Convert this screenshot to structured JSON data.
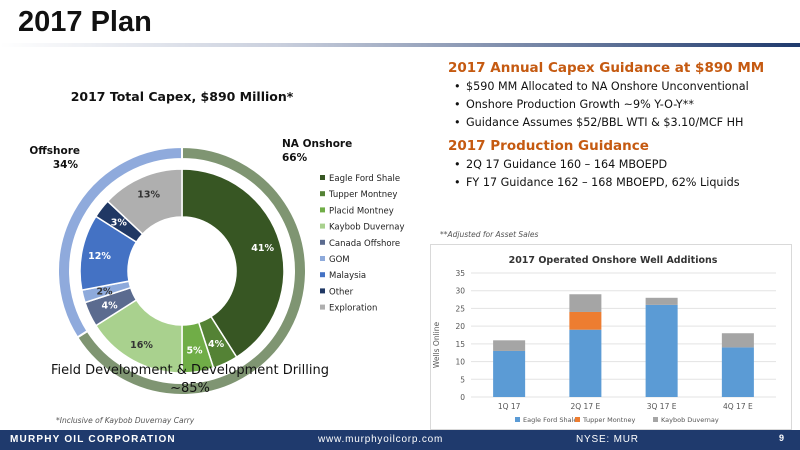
{
  "slide_title": "2017 Plan",
  "guidance": {
    "capex_heading": "2017 Annual Capex Guidance at $890 MM",
    "capex_bullets": [
      "$590 MM Allocated to NA Onshore Unconventional",
      "Onshore Production Growth ~9% Y-O-Y**",
      "Guidance Assumes $52/BBL WTI & $3.10/MCF HH"
    ],
    "production_heading": "2017 Production Guidance",
    "production_bullets": [
      "2Q 17 Guidance 160 – 164 MBOEPD",
      "FY 17 Guidance 162 – 168 MBOEPD, 62% Liquids"
    ],
    "adjusted_note": "**Adjusted for Asset Sales"
  },
  "footnote": "*Inclusive of Kaybob Duvernay Carry",
  "footer": {
    "company": "MURPHY OIL CORPORATION",
    "url": "www.murphyoilcorp.com",
    "ticker": "NYSE: MUR",
    "page": "9"
  },
  "chart_data": [
    {
      "type": "pie",
      "variant": "double-donut",
      "title": "2017 Total Capex, $890 Million*",
      "caption_line1": "Field Development & Development Drilling",
      "caption_line2": "~85%",
      "inner_ring": [
        {
          "label": "Eagle Ford Shale",
          "value": 41,
          "color": "#375623"
        },
        {
          "label": "Tupper Montney",
          "value": 4,
          "color": "#548235"
        },
        {
          "label": "Placid Montney",
          "value": 5,
          "color": "#70ad47"
        },
        {
          "label": "Kaybob Duvernay",
          "value": 16,
          "color": "#a9d18e"
        },
        {
          "label": "Canada Offshore",
          "value": 4,
          "color": "#5b6b8f"
        },
        {
          "label": "GOM",
          "value": 2,
          "color": "#8eaadb"
        },
        {
          "label": "Malaysia",
          "value": 12,
          "color": "#4472c4"
        },
        {
          "label": "Other",
          "value": 3,
          "color": "#203864"
        },
        {
          "label": "Exploration",
          "value": 13,
          "color": "#afafaf"
        }
      ],
      "inner_labels": [
        "41%",
        "4%",
        "5%",
        "16%",
        "4%",
        "2%",
        "12%",
        "3%",
        "13%"
      ],
      "outer_ring": [
        {
          "label": "NA Onshore",
          "value": 66,
          "pct_label": "66%",
          "color": "#7f9572"
        },
        {
          "label": "Offshore",
          "value": 34,
          "pct_label": "34%",
          "color": "#8faadc"
        }
      ],
      "legend_placement": "right",
      "legend": [
        "Eagle Ford Shale",
        "Tupper Montney",
        "Placid Montney",
        "Kaybob Duvernay",
        "Canada Offshore",
        "GOM",
        "Malaysia",
        "Other",
        "Exploration"
      ]
    },
    {
      "type": "bar",
      "stacked": true,
      "title": "2017 Operated Onshore Well Additions",
      "ylabel": "Wells Online",
      "xlabel": "",
      "categories": [
        "1Q 17",
        "2Q 17 E",
        "3Q 17 E",
        "4Q 17 E"
      ],
      "ylim": [
        0,
        35
      ],
      "yticks": [
        0,
        5,
        10,
        15,
        20,
        25,
        30,
        35
      ],
      "grid": true,
      "legend_placement": "bottom",
      "series": [
        {
          "name": "Eagle Ford Shale",
          "color": "#5b9bd5",
          "values": [
            13,
            19,
            26,
            14
          ]
        },
        {
          "name": "Tupper Montney",
          "color": "#ed7d31",
          "values": [
            0,
            5,
            0,
            0
          ]
        },
        {
          "name": "Kaybob Duvernay",
          "color": "#a5a5a5",
          "values": [
            3,
            5,
            2,
            4
          ]
        }
      ]
    }
  ]
}
